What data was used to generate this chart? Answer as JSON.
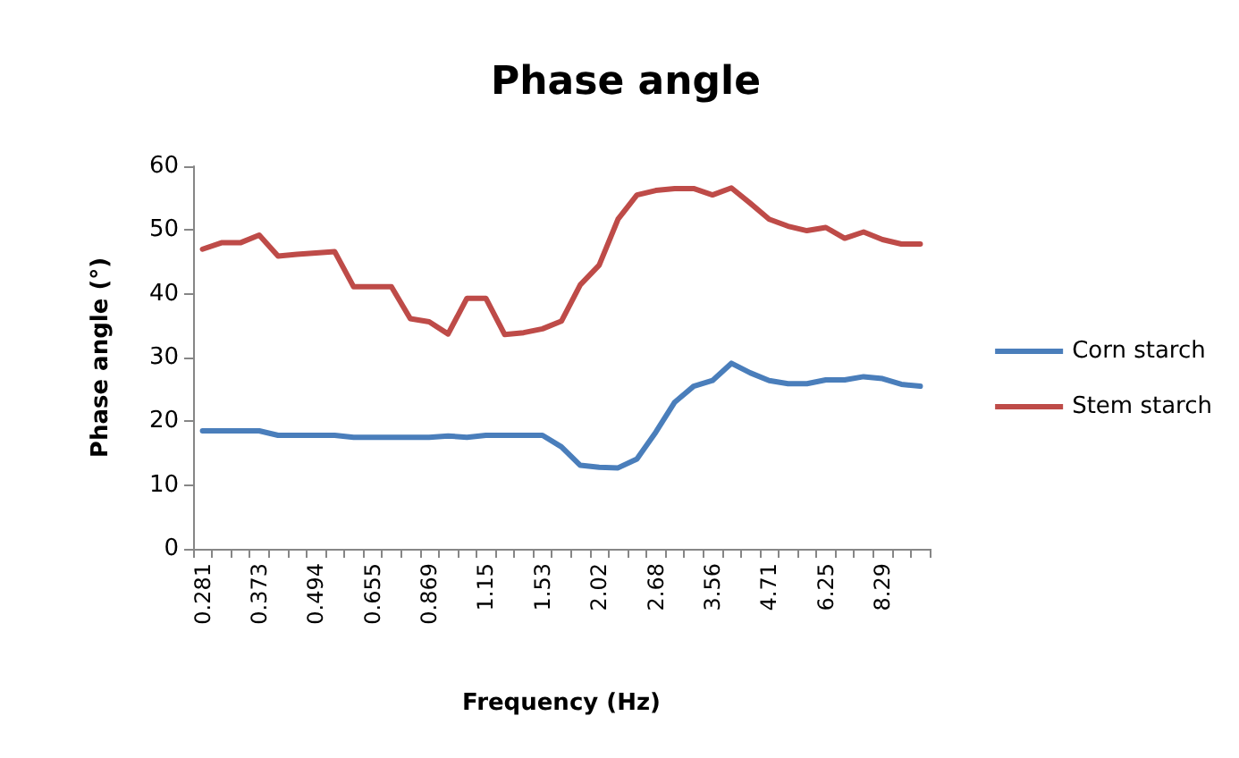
{
  "chart_data": {
    "type": "line",
    "title": "Phase angle",
    "xlabel": "Frequency (Hz)",
    "ylabel": "Phase angle (°)",
    "categories": [
      "0.281",
      null,
      null,
      "0.373",
      null,
      null,
      "0.494",
      null,
      null,
      "0.655",
      null,
      null,
      "0.869",
      null,
      null,
      "1.15",
      null,
      null,
      "1.53",
      null,
      null,
      "2.02",
      null,
      null,
      "2.68",
      null,
      null,
      "3.56",
      null,
      null,
      "4.71",
      null,
      null,
      "6.25",
      null,
      null,
      "8.29",
      null,
      null
    ],
    "series": [
      {
        "name": "Corn starch",
        "color": "#4a7ebb",
        "values": [
          18.5,
          18.5,
          18.5,
          18.5,
          17.8,
          17.8,
          17.8,
          17.8,
          17.5,
          17.5,
          17.5,
          17.5,
          17.5,
          17.7,
          17.5,
          17.8,
          17.8,
          17.8,
          17.8,
          16,
          13.1,
          12.8,
          12.7,
          14.1,
          18.3,
          23,
          25.5,
          26.4,
          29.1,
          27.6,
          26.4,
          25.9,
          25.9,
          26.5,
          26.5,
          27,
          26.7,
          25.8,
          25.5
        ]
      },
      {
        "name": "Stem starch",
        "color": "#be4b48",
        "values": [
          47,
          48,
          48,
          49.2,
          45.9,
          46.2,
          46.4,
          46.6,
          41.1,
          41.1,
          41.1,
          36.1,
          35.6,
          33.7,
          39.3,
          39.3,
          33.6,
          33.9,
          34.5,
          35.7,
          41.4,
          44.5,
          51.7,
          55.5,
          56.2,
          56.5,
          56.5,
          55.5,
          56.6,
          54.2,
          51.7,
          50.6,
          49.9,
          50.4,
          48.7,
          49.7,
          48.5,
          47.8,
          47.8
        ]
      }
    ],
    "ylim": [
      0,
      60
    ],
    "yticks": [
      0,
      10,
      20,
      30,
      40,
      50,
      60
    ],
    "grid": false,
    "legend": "right",
    "marker": "none",
    "line_style": "solid"
  }
}
